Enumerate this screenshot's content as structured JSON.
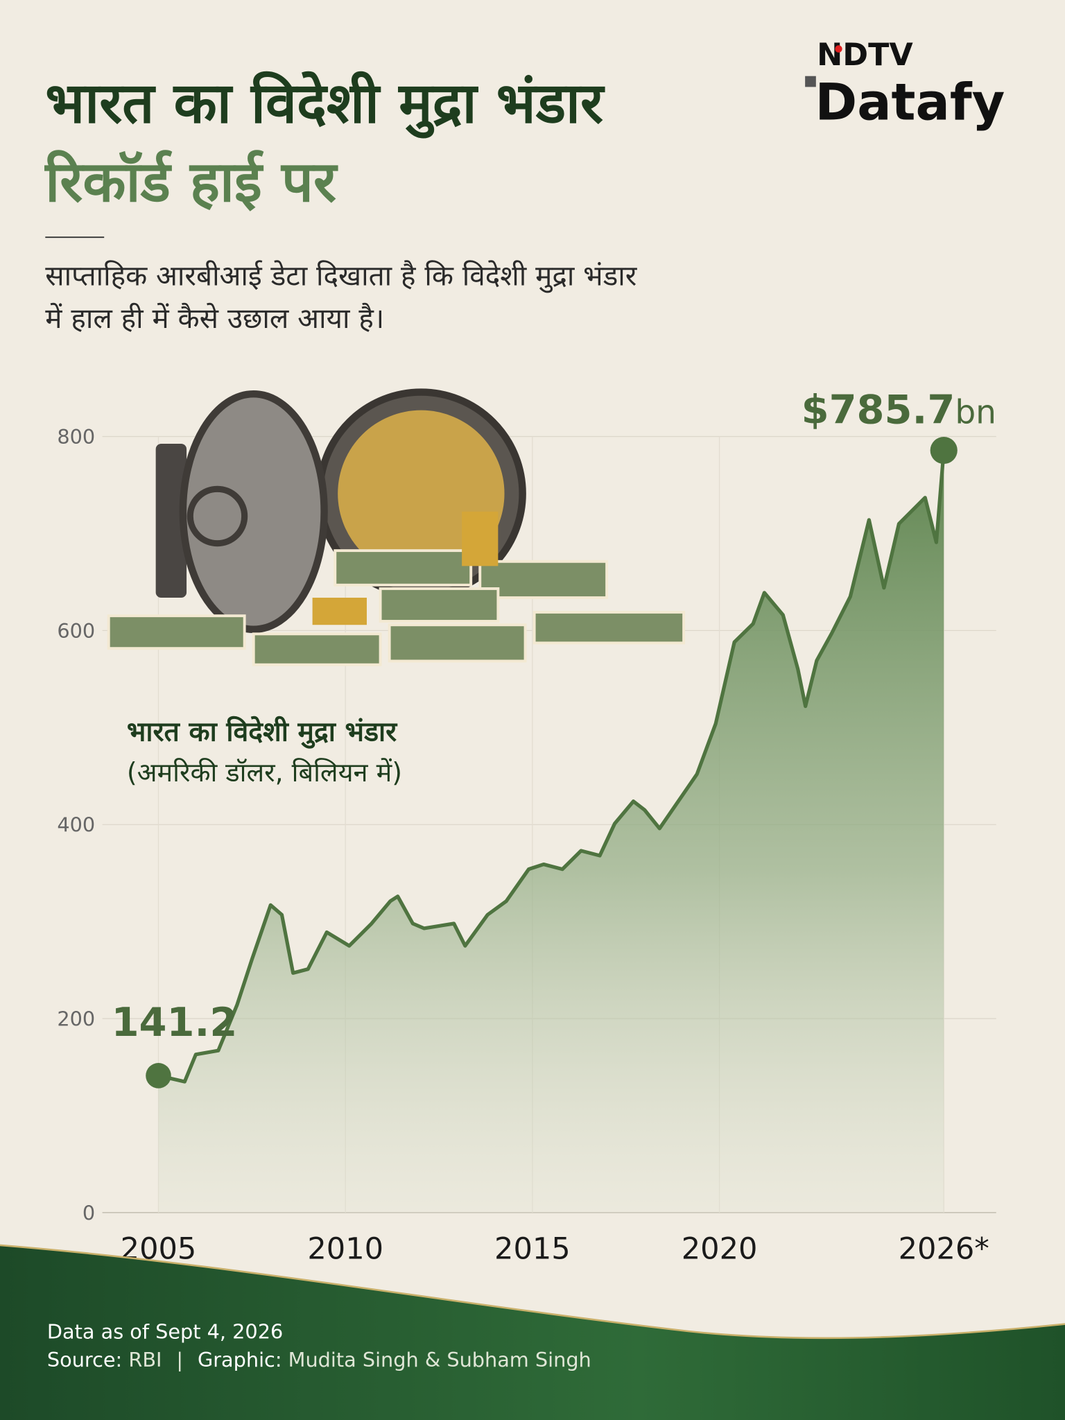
{
  "chart_data": {
    "type": "line",
    "title": "भारत का विदेशी मुद्रा भंडार",
    "title_line2": "रिकॉर्ड हाई पर",
    "subtitle": [
      "साप्ताहिक आरबीआई डेटा दिखाता है कि विदेशी मुद्रा भंडार",
      "में हाल ही में कैसे उछाल आया है।"
    ],
    "logo": {
      "top": "NDTV",
      "bottom": "Datafy"
    },
    "series_label": "भारत का विदेशी मुद्रा भंडार",
    "unit_label": "(अमरिकी डॉलर, बिलियन में)",
    "start_label": "141.2",
    "end_label": [
      "$785.7",
      "bn"
    ],
    "color": "#4f7440",
    "x": [
      2005.0,
      2005.7,
      2006.0,
      2006.6,
      2007.1,
      2007.5,
      2008.0,
      2008.3,
      2008.6,
      2009.0,
      2009.5,
      2010.1,
      2010.7,
      2011.2,
      2011.4,
      2011.8,
      2012.1,
      2012.9,
      2013.2,
      2013.8,
      2014.3,
      2014.9,
      2015.3,
      2015.8,
      2016.3,
      2016.8,
      2017.2,
      2017.7,
      2018.0,
      2018.4,
      2018.9,
      2019.4,
      2019.9,
      2020.4,
      2020.9,
      2021.2,
      2021.7,
      2022.1,
      2022.3,
      2022.6,
      2023.0,
      2023.5,
      2024.0,
      2024.4,
      2024.8,
      2025.5,
      2025.8,
      2026.0
    ],
    "values": [
      141.2,
      135,
      163,
      167,
      214,
      261,
      317,
      307,
      247,
      251,
      289,
      275,
      298,
      321,
      326,
      298,
      293,
      298,
      275,
      307,
      321,
      354,
      359,
      354,
      373,
      368,
      401,
      424,
      415,
      396,
      424,
      452,
      504,
      588,
      607,
      639,
      616,
      560,
      522,
      569,
      597,
      635,
      714,
      644,
      710,
      737,
      691,
      785.7
    ],
    "xlim": [
      2003.5,
      2027.4
    ],
    "xticks": [
      2005,
      2010,
      2015,
      2020,
      {
        "value": 2026,
        "label": "2026*"
      }
    ],
    "ylim": [
      0,
      800
    ],
    "yticks": [
      0,
      200,
      400,
      600,
      800
    ],
    "grid": true,
    "footer": {
      "note": "Data as of Sept 4, 2026",
      "source_key": "Source:",
      "source": "RBI",
      "separator": "|",
      "graphic_key": "Graphic:",
      "graphic": "Mudita Singh & Subham Singh"
    }
  }
}
